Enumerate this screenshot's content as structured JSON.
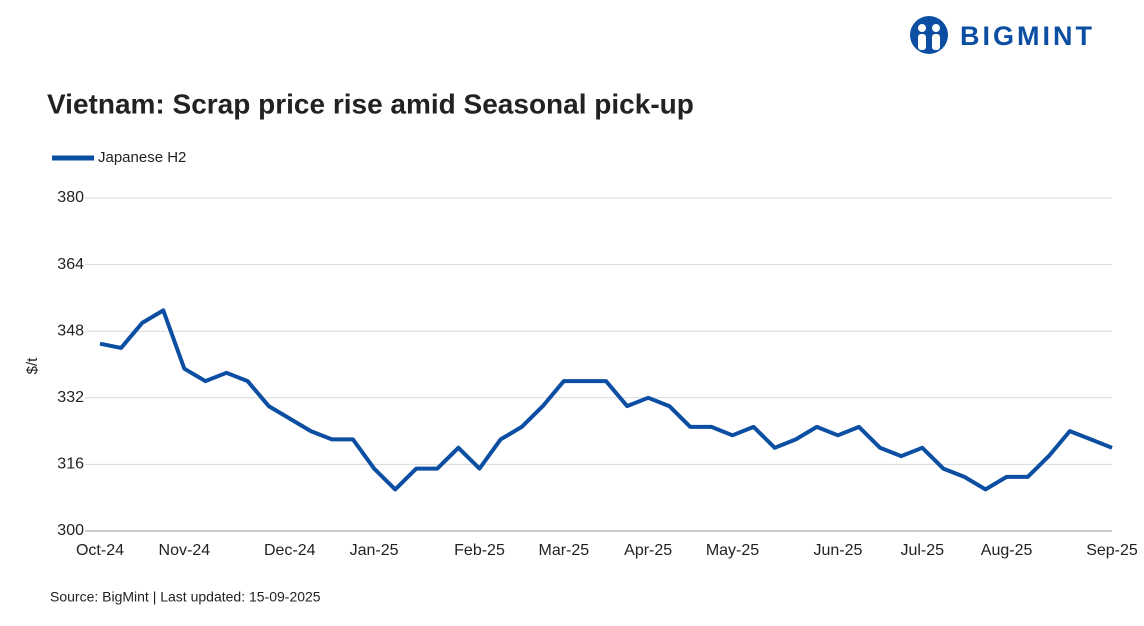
{
  "brand": "BIGMINT",
  "chart_data": {
    "type": "line",
    "title": "Vietnam: Scrap price rise amid Seasonal pick-up",
    "y_label": "$/t",
    "source": "Source: BigMint | Last updated: 15-09-2025",
    "categories": [
      "Oct-24",
      null,
      null,
      null,
      "Nov-24",
      null,
      null,
      null,
      null,
      "Dec-24",
      null,
      null,
      null,
      "Jan-25",
      null,
      null,
      null,
      null,
      "Feb-25",
      null,
      null,
      null,
      "Mar-25",
      null,
      null,
      null,
      "Apr-25",
      null,
      null,
      null,
      "May-25",
      null,
      null,
      null,
      null,
      "Jun-25",
      null,
      null,
      null,
      "Jul-25",
      null,
      null,
      null,
      "Aug-25",
      null,
      null,
      null,
      null,
      "Sep-25"
    ],
    "series": [
      {
        "name": "Japanese H2",
        "color": "#0b4ea2",
        "values": [
          345,
          344,
          350,
          353,
          339,
          336,
          338,
          336,
          330,
          327,
          324,
          322,
          322,
          315,
          310,
          315,
          315,
          320,
          315,
          322,
          325,
          330,
          336,
          336,
          336,
          330,
          332,
          330,
          325,
          325,
          323,
          325,
          320,
          322,
          325,
          323,
          325,
          320,
          318,
          320,
          315,
          313,
          310,
          313,
          313,
          318,
          324,
          322,
          320
        ]
      }
    ],
    "ylim": [
      300,
      380
    ],
    "yticks": [
      300,
      316,
      332,
      348,
      364,
      380
    ],
    "grid": true,
    "legend": "top-left"
  }
}
